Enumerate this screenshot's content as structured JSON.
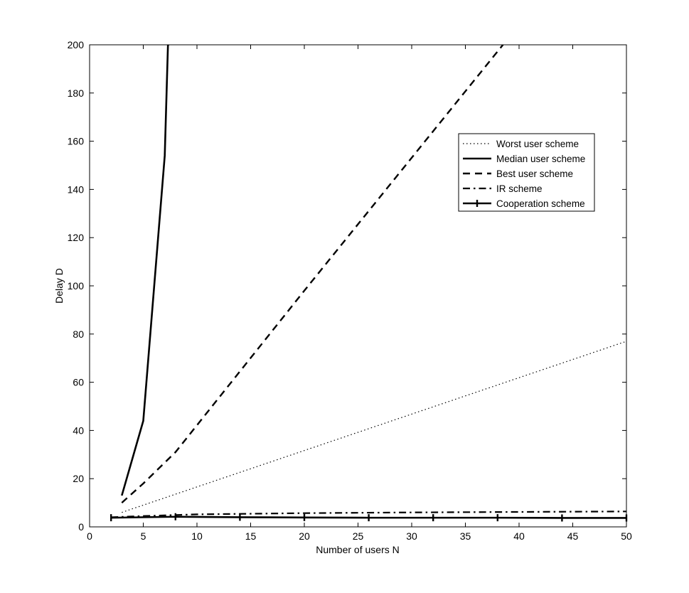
{
  "chart_data": {
    "type": "line",
    "xlabel": "Number of users N",
    "ylabel": "Delay D",
    "xlim": [
      0,
      50
    ],
    "ylim": [
      0,
      200
    ],
    "xticks": [
      0,
      5,
      10,
      15,
      20,
      25,
      30,
      35,
      40,
      45,
      50
    ],
    "yticks": [
      0,
      20,
      40,
      60,
      80,
      100,
      120,
      140,
      160,
      180,
      200
    ],
    "grid": false,
    "legend_position": "upper right",
    "series": [
      {
        "name": "Worst user scheme",
        "style": "dotted",
        "color": "#000000",
        "x": [
          3,
          50
        ],
        "y": [
          6,
          77
        ]
      },
      {
        "name": "Median user scheme",
        "style": "solid",
        "color": "#000000",
        "x": [
          3,
          5,
          7,
          7.3,
          7.4
        ],
        "y": [
          13,
          44,
          154,
          200,
          200
        ]
      },
      {
        "name": "Best user scheme",
        "style": "dashed",
        "color": "#000000",
        "x": [
          3,
          5,
          8,
          20,
          38.5
        ],
        "y": [
          10,
          18,
          31,
          98,
          200
        ]
      },
      {
        "name": "IR scheme",
        "style": "dashdot",
        "color": "#000000",
        "x": [
          2,
          5,
          10,
          20,
          30,
          40,
          50
        ],
        "y": [
          4,
          4.5,
          5.2,
          5.7,
          6,
          6.2,
          6.4
        ]
      },
      {
        "name": "Cooperation scheme",
        "style": "solid-marker",
        "color": "#000000",
        "x": [
          2,
          8,
          14,
          20,
          26,
          32,
          38,
          44,
          50
        ],
        "y": [
          3.8,
          4.2,
          4.0,
          3.9,
          3.8,
          3.8,
          3.8,
          3.7,
          3.7
        ]
      }
    ]
  }
}
